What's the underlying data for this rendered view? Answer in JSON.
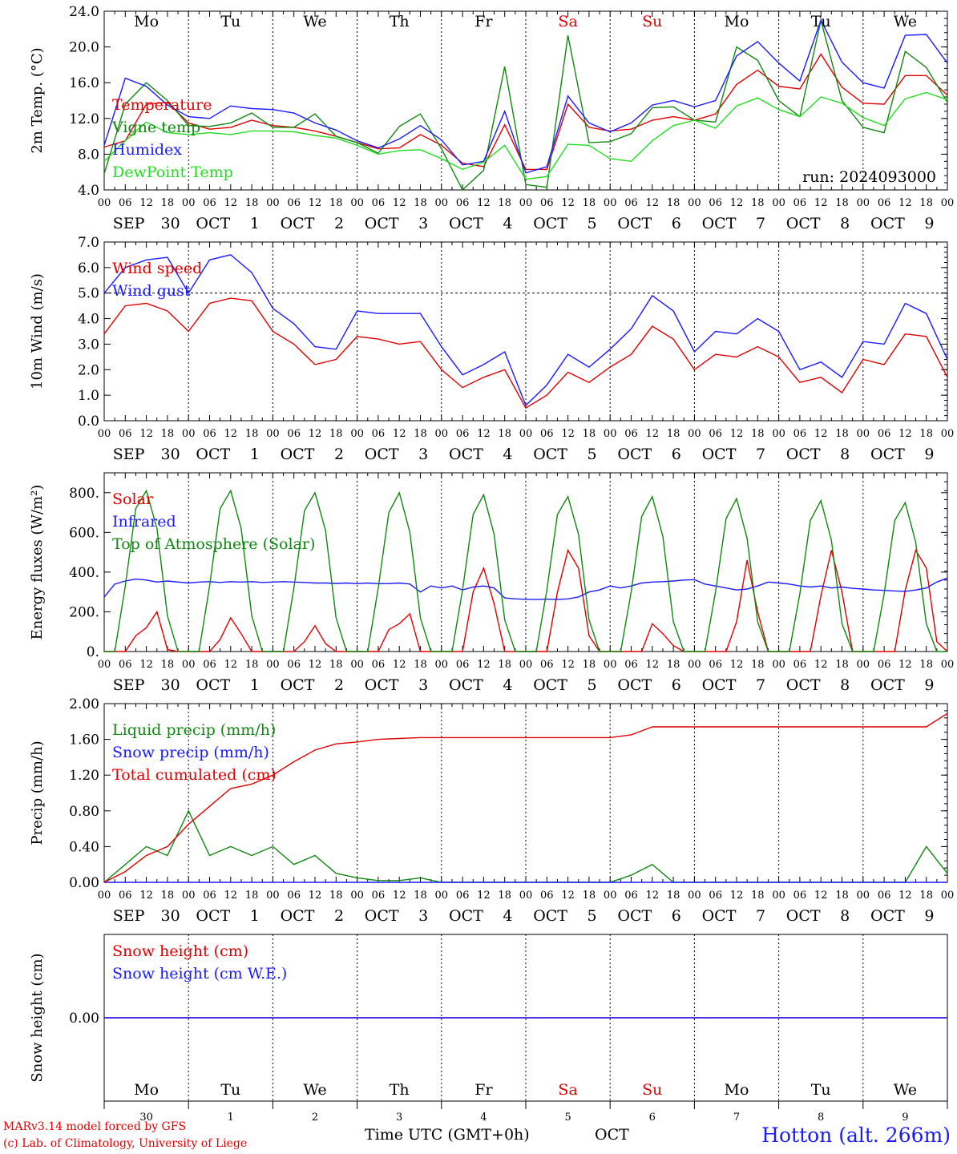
{
  "run_label": "run: 2024093000",
  "hour_ticks": [
    "00",
    "06",
    "12",
    "18"
  ],
  "date_labels": [
    {
      "mon": "SEP",
      "day": "30"
    },
    {
      "mon": "OCT",
      "day": "1"
    },
    {
      "mon": "OCT",
      "day": "2"
    },
    {
      "mon": "OCT",
      "day": "3"
    },
    {
      "mon": "OCT",
      "day": "4"
    },
    {
      "mon": "OCT",
      "day": "5"
    },
    {
      "mon": "OCT",
      "day": "6"
    },
    {
      "mon": "OCT",
      "day": "7"
    },
    {
      "mon": "OCT",
      "day": "8"
    },
    {
      "mon": "OCT",
      "day": "9"
    }
  ],
  "weekdays": [
    {
      "name": "Mo",
      "color": "#000000"
    },
    {
      "name": "Tu",
      "color": "#000000"
    },
    {
      "name": "We",
      "color": "#000000"
    },
    {
      "name": "Th",
      "color": "#000000"
    },
    {
      "name": "Fr",
      "color": "#000000"
    },
    {
      "name": "Sa",
      "color": "#e00000"
    },
    {
      "name": "Su",
      "color": "#e00000"
    },
    {
      "name": "Mo",
      "color": "#000000"
    },
    {
      "name": "Tu",
      "color": "#000000"
    },
    {
      "name": "We",
      "color": "#000000"
    }
  ],
  "bottom_day_numbers": [
    "30",
    "1",
    "2",
    "3",
    "4",
    "5",
    "6",
    "7",
    "8",
    "9"
  ],
  "footer": {
    "model_line": "MARv3.14 model forced by GFS",
    "lab_line": "(c) Lab. of Climatology, University of Liege",
    "time_axis": "Time UTC (GMT+0h)",
    "month": "OCT",
    "station": "Hotton (alt. 266m)"
  },
  "chart_data": [
    {
      "type": "line",
      "ylabel": "2m Temp. (°C)",
      "ylim": [
        4,
        24
      ],
      "yticks": [
        "4.0",
        "8.0",
        "12.0",
        "16.0",
        "20.0",
        "24.0"
      ],
      "x_hours": [
        0,
        6,
        12,
        18,
        24,
        30,
        36,
        42,
        48,
        54,
        60,
        66,
        72,
        78,
        84,
        90,
        96,
        102,
        108,
        114,
        120,
        126,
        132,
        138,
        144,
        150,
        156,
        162,
        168,
        174,
        180,
        186,
        192,
        198,
        204,
        210,
        216,
        222,
        228,
        234,
        240
      ],
      "series": [
        {
          "name": "Temperature",
          "color": "#e00000",
          "values": [
            8.8,
            9.5,
            13.6,
            13.8,
            11.5,
            10.8,
            11.0,
            11.8,
            11.2,
            11.0,
            10.6,
            10.0,
            9.3,
            8.6,
            8.7,
            10.2,
            9.0,
            7.0,
            6.6,
            11.3,
            6.3,
            6.3,
            13.6,
            11.0,
            10.6,
            10.8,
            11.8,
            12.2,
            11.8,
            12.5,
            15.8,
            17.4,
            15.6,
            15.3,
            19.2,
            15.5,
            13.7,
            13.6,
            16.8,
            16.8,
            14.6
          ]
        },
        {
          "name": "Vigne temp",
          "color": "#118811",
          "values": [
            5.8,
            13.6,
            16.0,
            14.0,
            11.2,
            11.1,
            11.5,
            12.6,
            11.0,
            11.0,
            12.5,
            10.0,
            9.3,
            8.1,
            11.1,
            12.5,
            8.6,
            3.5,
            6.2,
            17.8,
            4.6,
            4.3,
            21.3,
            9.3,
            9.4,
            10.3,
            13.2,
            13.3,
            11.8,
            11.6,
            20.0,
            18.5,
            14.0,
            12.2,
            23.0,
            14.0,
            11.0,
            10.4,
            19.5,
            17.7,
            13.8
          ]
        },
        {
          "name": "Humidex",
          "color": "#1a1aff",
          "values": [
            9.0,
            16.5,
            15.6,
            13.5,
            12.2,
            12.0,
            13.4,
            13.1,
            13.0,
            12.6,
            11.5,
            10.7,
            9.5,
            8.7,
            9.7,
            11.2,
            9.6,
            6.8,
            7.2,
            12.8,
            5.9,
            6.6,
            14.5,
            11.5,
            10.5,
            11.5,
            13.5,
            14.0,
            13.3,
            14.0,
            19.0,
            20.6,
            18.2,
            16.2,
            23.0,
            18.3,
            16.0,
            15.4,
            21.3,
            21.4,
            18.2
          ]
        },
        {
          "name": "DewPoint Temp",
          "color": "#22dd22",
          "values": [
            7.2,
            9.5,
            11.6,
            10.4,
            10.2,
            10.4,
            10.2,
            10.6,
            10.6,
            10.5,
            10.1,
            9.8,
            9.0,
            8.0,
            8.4,
            8.5,
            7.5,
            6.3,
            7.1,
            9.0,
            5.2,
            5.5,
            9.1,
            9.0,
            7.5,
            7.2,
            9.5,
            11.2,
            11.8,
            10.9,
            13.4,
            14.3,
            13.0,
            12.2,
            14.4,
            13.7,
            12.1,
            11.2,
            14.2,
            14.9,
            14.1
          ]
        }
      ]
    },
    {
      "type": "line",
      "ylabel": "10m Wind (m/s)",
      "ylim": [
        0,
        7
      ],
      "yticks": [
        "0.0",
        "1.0",
        "2.0",
        "3.0",
        "4.0",
        "5.0",
        "6.0",
        "7.0"
      ],
      "x_hours": [
        0,
        6,
        12,
        18,
        24,
        30,
        36,
        42,
        48,
        54,
        60,
        66,
        72,
        78,
        84,
        90,
        96,
        102,
        108,
        114,
        120,
        126,
        132,
        138,
        144,
        150,
        156,
        162,
        168,
        174,
        180,
        186,
        192,
        198,
        204,
        210,
        216,
        222,
        228,
        234,
        240
      ],
      "series": [
        {
          "name": "Wind speed",
          "color": "#e00000",
          "values": [
            3.4,
            4.5,
            4.6,
            4.3,
            3.5,
            4.6,
            4.8,
            4.7,
            3.5,
            3.0,
            2.2,
            2.4,
            3.3,
            3.2,
            3.0,
            3.1,
            2.0,
            1.3,
            1.7,
            2.0,
            0.5,
            1.0,
            1.9,
            1.5,
            2.1,
            2.6,
            3.7,
            3.2,
            2.0,
            2.6,
            2.5,
            2.9,
            2.5,
            1.5,
            1.7,
            1.1,
            2.4,
            2.2,
            3.4,
            3.3,
            1.7
          ]
        },
        {
          "name": "Wind gust",
          "color": "#1a1aff",
          "values": [
            5.0,
            6.0,
            6.3,
            6.4,
            5.0,
            6.3,
            6.5,
            5.8,
            4.4,
            3.8,
            2.9,
            2.8,
            4.3,
            4.2,
            4.2,
            4.2,
            2.9,
            1.8,
            2.2,
            2.7,
            0.6,
            1.4,
            2.6,
            2.1,
            2.8,
            3.6,
            4.9,
            4.3,
            2.7,
            3.5,
            3.4,
            4.0,
            3.5,
            2.0,
            2.3,
            1.7,
            3.1,
            3.0,
            4.6,
            4.2,
            2.4
          ]
        }
      ],
      "reference_line": 5.0
    },
    {
      "type": "line",
      "ylabel": "Energy fluxes (W/m²)",
      "ylim": [
        0,
        900
      ],
      "yticks": [
        "0.",
        "200.",
        "400.",
        "600.",
        "800."
      ],
      "x_hours": [
        0,
        3,
        6,
        9,
        12,
        15,
        18,
        21,
        24,
        27,
        30,
        33,
        36,
        39,
        42,
        45,
        48,
        51,
        54,
        57,
        60,
        63,
        66,
        69,
        72,
        75,
        78,
        81,
        84,
        87,
        90,
        93,
        96,
        99,
        102,
        105,
        108,
        111,
        114,
        117,
        120,
        123,
        126,
        129,
        132,
        135,
        138,
        141,
        144,
        147,
        150,
        153,
        156,
        159,
        162,
        165,
        168,
        171,
        174,
        177,
        180,
        183,
        186,
        189,
        192,
        195,
        198,
        201,
        204,
        207,
        210,
        213,
        216,
        219,
        222,
        225,
        228,
        231,
        234,
        237,
        240
      ],
      "series": [
        {
          "name": "Solar",
          "color": "#e00000",
          "values": [
            0,
            0,
            0,
            80,
            120,
            200,
            10,
            0,
            0,
            0,
            0,
            60,
            170,
            90,
            0,
            0,
            0,
            0,
            0,
            50,
            130,
            40,
            0,
            0,
            0,
            0,
            0,
            110,
            140,
            190,
            0,
            0,
            0,
            0,
            0,
            300,
            420,
            240,
            0,
            0,
            0,
            0,
            0,
            300,
            510,
            420,
            80,
            0,
            0,
            0,
            0,
            0,
            140,
            90,
            30,
            0,
            0,
            0,
            0,
            0,
            150,
            460,
            200,
            0,
            0,
            0,
            0,
            0,
            280,
            510,
            300,
            0,
            0,
            0,
            0,
            0,
            310,
            510,
            420,
            50,
            0
          ]
        },
        {
          "name": "Infrared",
          "color": "#1a1aff",
          "values": [
            275,
            340,
            355,
            365,
            360,
            350,
            355,
            350,
            345,
            350,
            352,
            348,
            352,
            350,
            352,
            348,
            350,
            352,
            350,
            348,
            345,
            345,
            343,
            345,
            342,
            345,
            342,
            342,
            345,
            340,
            300,
            330,
            320,
            330,
            310,
            325,
            330,
            320,
            270,
            265,
            263,
            262,
            264,
            262,
            265,
            275,
            300,
            310,
            330,
            320,
            330,
            345,
            350,
            352,
            355,
            360,
            362,
            340,
            330,
            320,
            310,
            315,
            330,
            350,
            345,
            340,
            330,
            325,
            330,
            320,
            325,
            318,
            315,
            310,
            308,
            305,
            303,
            310,
            320,
            350,
            370
          ]
        },
        {
          "name": "Top of Atmosphere (Solar)",
          "color": "#118811",
          "values": [
            0,
            0,
            330,
            720,
            810,
            620,
            180,
            0,
            0,
            0,
            330,
            720,
            810,
            620,
            180,
            0,
            0,
            0,
            320,
            710,
            800,
            610,
            170,
            0,
            0,
            0,
            320,
            700,
            800,
            600,
            170,
            0,
            0,
            0,
            310,
            690,
            790,
            590,
            160,
            0,
            0,
            0,
            310,
            690,
            780,
            590,
            160,
            0,
            0,
            0,
            300,
            680,
            780,
            580,
            150,
            0,
            0,
            0,
            300,
            670,
            770,
            570,
            150,
            0,
            0,
            0,
            290,
            660,
            760,
            560,
            140,
            0,
            0,
            0,
            290,
            660,
            750,
            550,
            140,
            0,
            0
          ]
        }
      ]
    },
    {
      "type": "line",
      "ylabel": "Precip (mm/h)",
      "ylim": [
        0,
        2
      ],
      "yticks": [
        "0.00",
        "0.40",
        "0.80",
        "1.20",
        "1.60",
        "2.00"
      ],
      "x_hours": [
        0,
        6,
        12,
        18,
        24,
        30,
        36,
        42,
        48,
        54,
        60,
        66,
        72,
        78,
        84,
        90,
        96,
        102,
        108,
        114,
        120,
        126,
        132,
        138,
        144,
        150,
        156,
        162,
        168,
        174,
        180,
        186,
        192,
        198,
        204,
        210,
        216,
        222,
        228,
        234,
        240
      ],
      "series": [
        {
          "name": "Liquid precip (mm/h)",
          "color": "#118811",
          "values": [
            0.0,
            0.2,
            0.4,
            0.3,
            0.8,
            0.3,
            0.4,
            0.3,
            0.4,
            0.2,
            0.3,
            0.1,
            0.05,
            0.02,
            0.02,
            0.05,
            0.0,
            0.0,
            0.0,
            0.0,
            0.0,
            0.0,
            0.0,
            0.0,
            0.0,
            0.08,
            0.2,
            0.0,
            0.0,
            0.0,
            0.0,
            0.0,
            0.0,
            0.0,
            0.0,
            0.0,
            0.0,
            0.0,
            0.0,
            0.4,
            0.1
          ]
        },
        {
          "name": "Snow precip (mm/h)",
          "color": "#1a1aff",
          "values": [
            0,
            0,
            0,
            0,
            0,
            0,
            0,
            0,
            0,
            0,
            0,
            0,
            0,
            0,
            0,
            0,
            0,
            0,
            0,
            0,
            0,
            0,
            0,
            0,
            0,
            0,
            0,
            0,
            0,
            0,
            0,
            0,
            0,
            0,
            0,
            0,
            0,
            0,
            0,
            0,
            0
          ]
        },
        {
          "name": "Total cumulated (cm)",
          "color": "#e00000",
          "values": [
            0.0,
            0.12,
            0.3,
            0.4,
            0.65,
            0.85,
            1.05,
            1.1,
            1.2,
            1.35,
            1.48,
            1.55,
            1.57,
            1.6,
            1.61,
            1.62,
            1.62,
            1.62,
            1.62,
            1.62,
            1.62,
            1.62,
            1.62,
            1.62,
            1.62,
            1.65,
            1.74,
            1.74,
            1.74,
            1.74,
            1.74,
            1.74,
            1.74,
            1.74,
            1.74,
            1.74,
            1.74,
            1.74,
            1.74,
            1.74,
            1.89
          ]
        }
      ]
    },
    {
      "type": "line",
      "ylabel": "Snow height (cm)",
      "ylim": [
        -1,
        1
      ],
      "yticks": [
        "0.00"
      ],
      "x_hours": [
        0,
        240
      ],
      "series": [
        {
          "name": "Snow height (cm)",
          "color": "#e00000",
          "values": [
            0,
            0
          ]
        },
        {
          "name": "Snow height (cm W.E.)",
          "color": "#1a1aff",
          "values": [
            0,
            0
          ]
        }
      ]
    }
  ]
}
